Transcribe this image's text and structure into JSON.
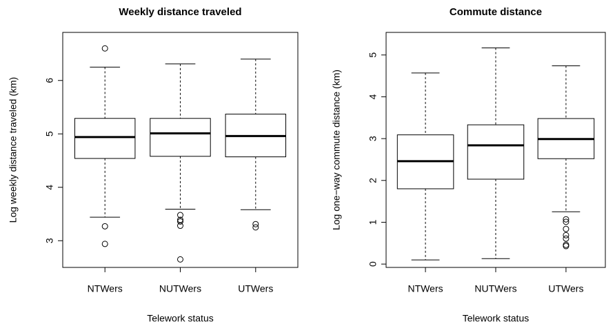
{
  "chart_data": [
    {
      "type": "boxplot",
      "title": "Weekly distance traveled",
      "x_label": "Telework status",
      "y_label": "Log weekly distance traveled (km)",
      "categories": [
        "NTWers",
        "NUTWers",
        "UTWers"
      ],
      "boxes": [
        {
          "whisker_low": 3.44,
          "q1": 4.54,
          "median": 4.94,
          "q3": 5.29,
          "whisker_high": 6.25,
          "outliers": [
            6.6,
            3.27,
            2.94
          ]
        },
        {
          "whisker_low": 3.59,
          "q1": 4.58,
          "median": 5.01,
          "q3": 5.29,
          "whisker_high": 6.31,
          "outliers": [
            3.48,
            3.39,
            3.36,
            3.28,
            2.65
          ]
        },
        {
          "whisker_low": 3.58,
          "q1": 4.57,
          "median": 4.96,
          "q3": 5.37,
          "whisker_high": 6.4,
          "outliers": [
            3.31,
            3.25
          ]
        }
      ],
      "ylim": [
        2.5,
        6.9
      ],
      "yticks": [
        3,
        4,
        5,
        6
      ]
    },
    {
      "type": "boxplot",
      "title": "Commute distance",
      "x_label": "Telework status",
      "y_label": "Log one−way commute distance (km)",
      "categories": [
        "NTWers",
        "NUTWers",
        "UTWers"
      ],
      "boxes": [
        {
          "whisker_low": 0.1,
          "q1": 1.8,
          "median": 2.46,
          "q3": 3.09,
          "whisker_high": 4.57,
          "outliers": []
        },
        {
          "whisker_low": 0.13,
          "q1": 2.03,
          "median": 2.84,
          "q3": 3.33,
          "whisker_high": 5.17,
          "outliers": []
        },
        {
          "whisker_low": 1.25,
          "q1": 2.52,
          "median": 2.99,
          "q3": 3.48,
          "whisker_high": 4.74,
          "outliers": [
            1.07,
            1.01,
            0.84,
            0.69,
            0.61,
            0.46,
            0.43
          ]
        }
      ],
      "ylim": [
        -0.08,
        5.54
      ],
      "yticks": [
        0,
        1,
        2,
        3,
        4,
        5
      ]
    }
  ]
}
